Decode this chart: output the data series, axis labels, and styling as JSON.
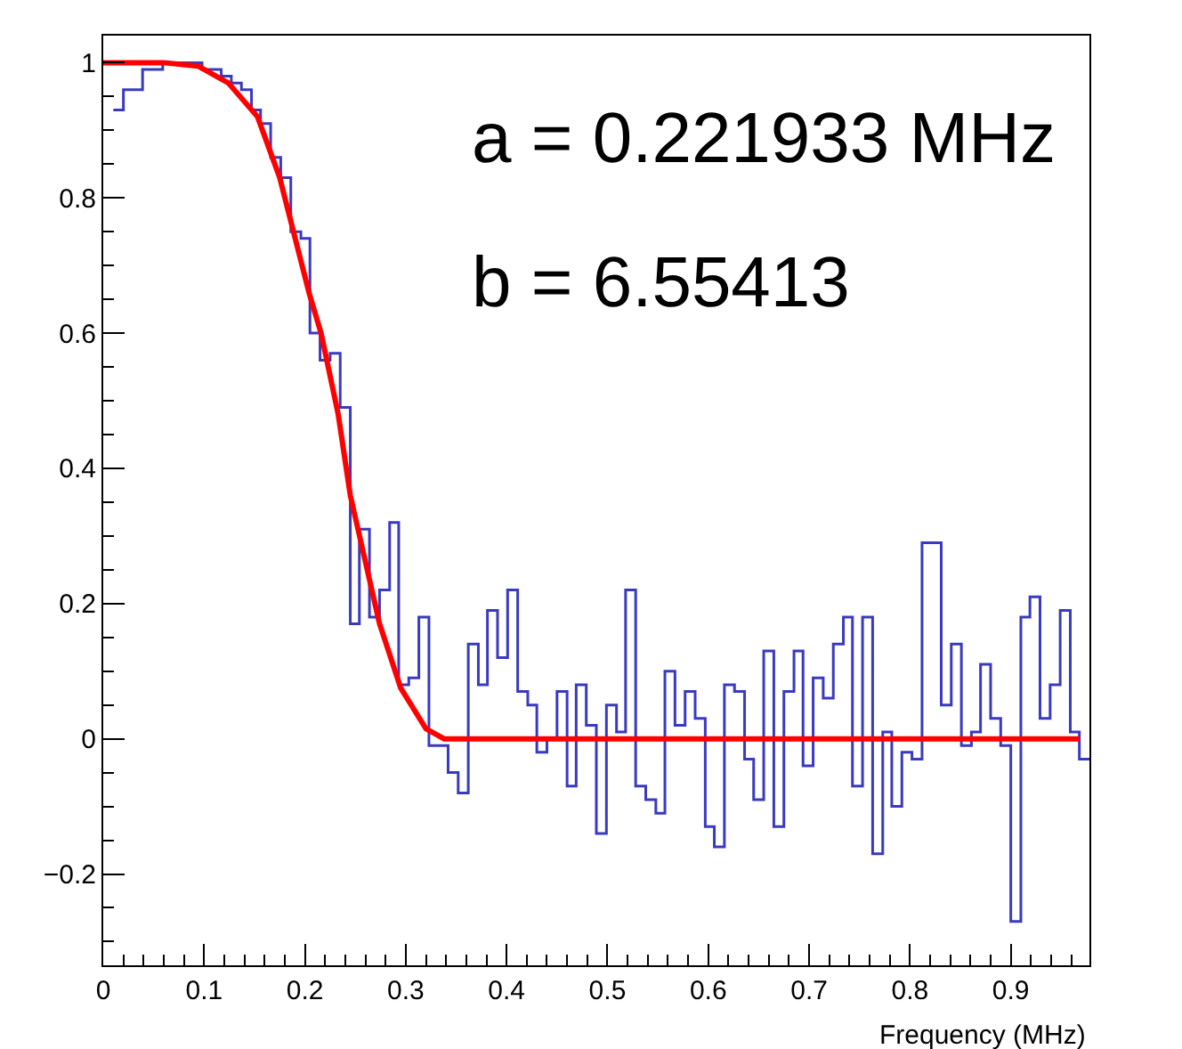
{
  "chart_data": {
    "type": "histogram",
    "xlabel": "Frequency (MHz)",
    "bins": [
      0.01,
      0.02,
      0.029,
      0.039,
      0.049,
      0.059,
      0.068,
      0.078,
      0.088,
      0.098,
      0.108,
      0.117,
      0.127,
      0.137,
      0.147,
      0.156,
      0.166,
      0.176,
      0.186,
      0.196,
      0.205,
      0.215,
      0.225,
      0.235,
      0.245,
      0.254,
      0.264,
      0.274,
      0.284,
      0.293,
      0.303,
      0.313,
      0.323,
      0.333,
      0.342,
      0.352,
      0.362,
      0.372,
      0.381,
      0.391,
      0.401,
      0.411,
      0.421,
      0.43,
      0.44,
      0.45,
      0.46,
      0.469,
      0.479,
      0.489,
      0.499,
      0.509,
      0.518,
      0.528,
      0.538,
      0.548,
      0.557,
      0.567,
      0.577,
      0.587,
      0.597,
      0.606,
      0.616,
      0.626,
      0.636,
      0.645,
      0.655,
      0.665,
      0.675,
      0.685,
      0.694,
      0.704,
      0.714,
      0.724,
      0.734,
      0.743,
      0.753,
      0.763,
      0.773,
      0.782,
      0.792,
      0.802,
      0.812,
      0.822,
      0.831,
      0.841,
      0.851,
      0.861,
      0.87,
      0.88,
      0.89,
      0.9,
      0.91,
      0.919,
      0.929,
      0.939,
      0.949,
      0.959,
      0.968,
      0.978
    ],
    "values": [
      0.93,
      0.96,
      0.96,
      0.99,
      0.99,
      1.0,
      1.0,
      1.0,
      1.0,
      0.99,
      0.99,
      0.98,
      0.97,
      0.96,
      0.93,
      0.91,
      0.86,
      0.83,
      0.75,
      0.74,
      0.6,
      0.56,
      0.57,
      0.49,
      0.17,
      0.31,
      0.18,
      0.22,
      0.32,
      0.08,
      0.09,
      0.18,
      -0.01,
      -0.01,
      -0.05,
      -0.08,
      0.14,
      0.08,
      0.19,
      0.12,
      0.22,
      0.07,
      0.05,
      -0.02,
      0.0,
      0.07,
      -0.07,
      0.08,
      0.02,
      -0.14,
      0.05,
      0.01,
      0.22,
      -0.07,
      -0.09,
      -0.11,
      0.1,
      0.02,
      0.07,
      0.03,
      -0.13,
      -0.16,
      0.08,
      0.07,
      -0.03,
      -0.09,
      0.13,
      -0.13,
      0.07,
      0.13,
      -0.04,
      0.09,
      0.06,
      0.14,
      0.18,
      -0.07,
      0.18,
      -0.17,
      0.01,
      -0.1,
      -0.02,
      -0.03,
      0.29,
      0.29,
      0.05,
      0.14,
      -0.01,
      0.01,
      0.11,
      0.03,
      -0.01,
      -0.27,
      0.18,
      0.21,
      0.03,
      0.08,
      0.19,
      0.01,
      -0.03
    ],
    "color": "#3a3ac0",
    "series": [
      {
        "type": "line",
        "color": "#ff0000",
        "x": [
          0,
          0.06,
          0.094,
          0.124,
          0.153,
          0.175,
          0.204,
          0.216,
          0.233,
          0.245,
          0.274,
          0.295,
          0.32,
          0.338,
          0.968
        ],
        "values": [
          1,
          1,
          0.995,
          0.97,
          0.92,
          0.83,
          0.66,
          0.6,
          0.48,
          0.36,
          0.17,
          0.075,
          0.015,
          0,
          0
        ]
      }
    ],
    "xlim": [
      0,
      0.978
    ],
    "ylim": [
      -0.335,
      1.04
    ],
    "xticks": [
      0,
      0.1,
      0.2,
      0.3,
      0.4,
      0.5,
      0.6,
      0.7,
      0.8,
      0.9
    ],
    "yticks": [
      {
        "value": -0.2,
        "label": "−0.2"
      },
      0,
      0.2,
      0.4,
      0.6,
      0.8,
      1
    ],
    "annotations": [
      "a = 0.221933 MHz",
      "b = 6.55413"
    ]
  }
}
